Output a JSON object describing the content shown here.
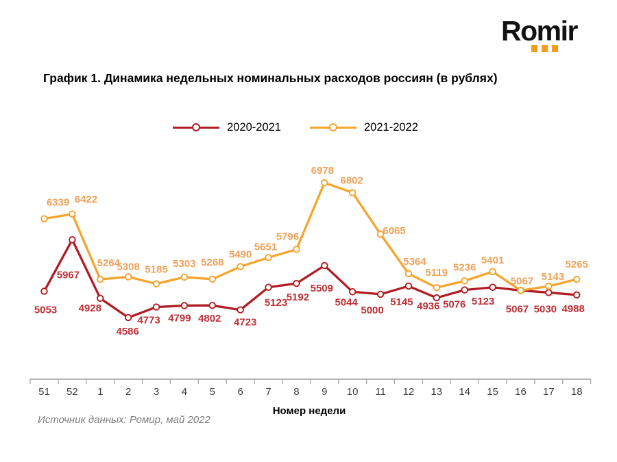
{
  "logo": {
    "text": "Romir",
    "dot_color": "#F49C1E"
  },
  "title": "График 1. Динамика недельных номинальных расходов россиян (в рублях)",
  "source": "Источник данных: Ромир, май 2022",
  "chart_data": {
    "type": "line",
    "title": "График 1. Динамика недельных номинальных расходов россиян (в рублях)",
    "xlabel": "Номер недели",
    "ylabel": "",
    "categories": [
      "51",
      "52",
      "1",
      "2",
      "3",
      "4",
      "5",
      "6",
      "7",
      "8",
      "9",
      "10",
      "11",
      "12",
      "13",
      "14",
      "15",
      "16",
      "17",
      "18"
    ],
    "series": [
      {
        "name": "2020-2021",
        "color": "#B11B23",
        "label_color": "#BE3036",
        "values": [
          5053,
          5967,
          4928,
          4586,
          4773,
          4799,
          4802,
          4723,
          5123,
          5192,
          5509,
          5044,
          5000,
          5145,
          4936,
          5076,
          5123,
          5067,
          5030,
          4988
        ]
      },
      {
        "name": "2021-2022",
        "color": "#F5A42C",
        "label_color": "#F0A158",
        "values": [
          6339,
          6422,
          5264,
          5308,
          5185,
          5303,
          5268,
          5490,
          5651,
          5796,
          6978,
          6802,
          6065,
          5364,
          5119,
          5236,
          5401,
          5067,
          5143,
          5265
        ]
      }
    ],
    "ylim": [
      4400,
      7150
    ],
    "grid": false,
    "data_labels": true,
    "legend_position": "top",
    "axis_color": "#9e9e9e",
    "tick_label_color": "#3a3a3a"
  }
}
